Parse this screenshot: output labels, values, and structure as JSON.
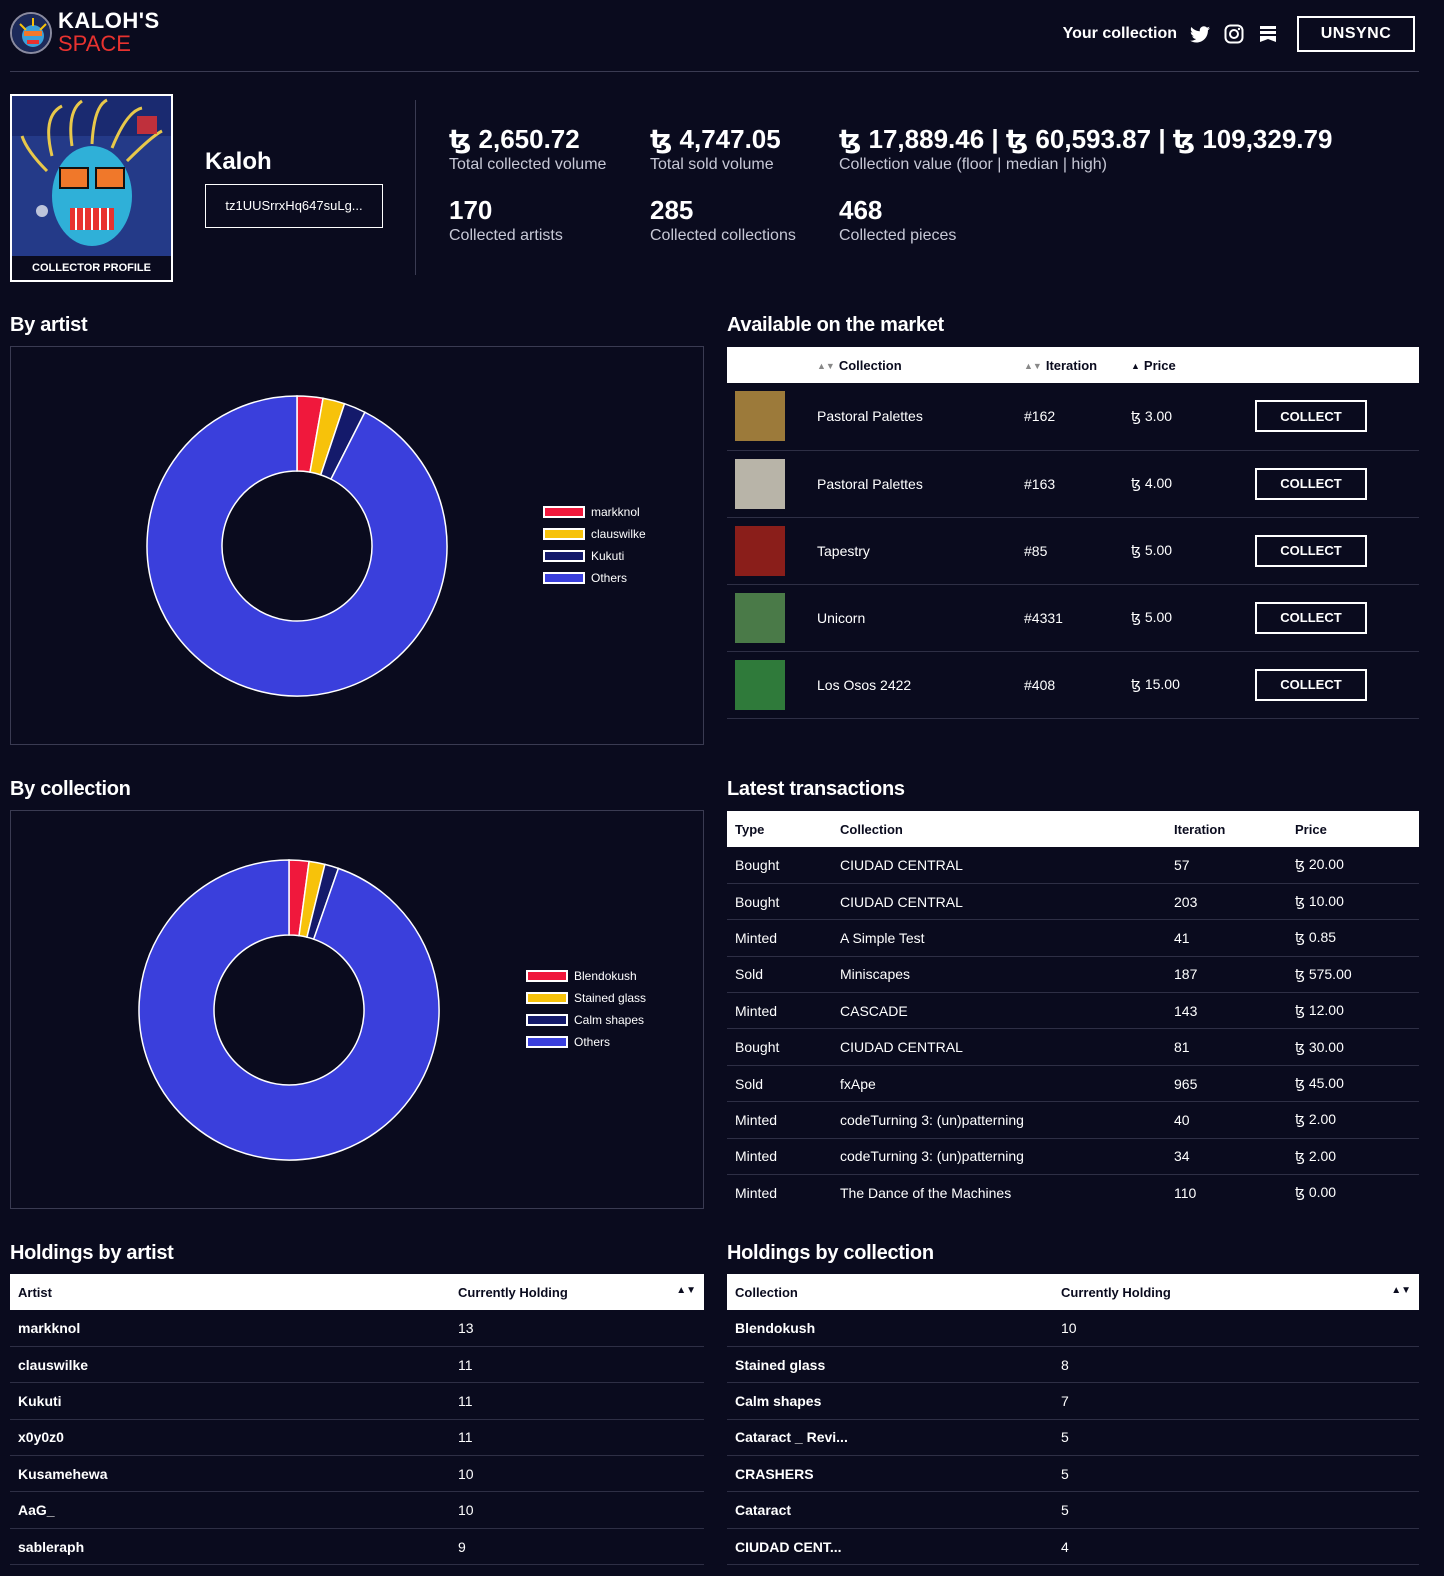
{
  "header": {
    "brand_line1": "KALOH'S",
    "brand_line2": "SPACE",
    "your_collection": "Your collection",
    "unsync_label": "UNSYNC",
    "icons": [
      "twitter-icon",
      "instagram-icon",
      "objkt-icon"
    ]
  },
  "profile": {
    "avatar_label": "COLLECTOR PROFILE",
    "name": "Kaloh",
    "address": "tz1UUSrrxHq647suLg..."
  },
  "stats": {
    "total_collected_volume": {
      "value": "ꜩ 2,650.72",
      "label": "Total collected volume"
    },
    "total_sold_volume": {
      "value": "ꜩ 4,747.05",
      "label": "Total sold volume"
    },
    "collection_value": {
      "value": "ꜩ 17,889.46 | ꜩ 60,593.87 | ꜩ 109,329.79",
      "label": "Collection value (floor | median | high)"
    },
    "collected_artists": {
      "value": "170",
      "label": "Collected artists"
    },
    "collected_collections": {
      "value": "285",
      "label": "Collected collections"
    },
    "collected_pieces": {
      "value": "468",
      "label": "Collected pieces"
    }
  },
  "sections": {
    "by_artist": "By artist",
    "by_collection": "By collection",
    "market": "Available on the market",
    "latest": "Latest transactions",
    "holdings_artist": "Holdings by artist",
    "holdings_collection": "Holdings by collection"
  },
  "colors": {
    "red": "#f0183c",
    "yellow": "#f7c20a",
    "navy": "#141a6b",
    "blue": "#3a3fdc",
    "bg": "#0a0b1e"
  },
  "chart_data": [
    {
      "type": "pie",
      "categories": [
        "markknol",
        "clauswilke",
        "Kukuti",
        "Others"
      ],
      "values": [
        13,
        11,
        11,
        433
      ],
      "legend_position": "right"
    },
    {
      "type": "pie",
      "categories": [
        "Blendokush",
        "Stained glass",
        "Calm shapes",
        "Others"
      ],
      "values": [
        10,
        8,
        7,
        443
      ],
      "legend_position": "right"
    }
  ],
  "market": {
    "headers": [
      "Collection",
      "Iteration",
      "Price"
    ],
    "button_label": "COLLECT",
    "rows": [
      {
        "collection": "Pastoral Palettes",
        "iteration": "#162",
        "price": "ꜩ 3.00",
        "thumb": "#9c7a3a"
      },
      {
        "collection": "Pastoral Palettes",
        "iteration": "#163",
        "price": "ꜩ 4.00",
        "thumb": "#b8b4a8"
      },
      {
        "collection": "Tapestry",
        "iteration": "#85",
        "price": "ꜩ 5.00",
        "thumb": "#8a1e1a"
      },
      {
        "collection": "Unicorn",
        "iteration": "#4331",
        "price": "ꜩ 5.00",
        "thumb": "#4a7a48"
      },
      {
        "collection": "Los Osos 2422",
        "iteration": "#408",
        "price": "ꜩ 15.00",
        "thumb": "#2f7a3a"
      }
    ]
  },
  "transactions": {
    "headers": [
      "Type",
      "Collection",
      "Iteration",
      "Price"
    ],
    "rows": [
      [
        "Bought",
        "CIUDAD CENTRAL",
        "57",
        "ꜩ 20.00"
      ],
      [
        "Bought",
        "CIUDAD CENTRAL",
        "203",
        "ꜩ 10.00"
      ],
      [
        "Minted",
        "A Simple Test",
        "41",
        "ꜩ 0.85"
      ],
      [
        "Sold",
        "Miniscapes",
        "187",
        "ꜩ 575.00"
      ],
      [
        "Minted",
        "CASCADE",
        "143",
        "ꜩ 12.00"
      ],
      [
        "Bought",
        "CIUDAD CENTRAL",
        "81",
        "ꜩ 30.00"
      ],
      [
        "Sold",
        "fxApe",
        "965",
        "ꜩ 45.00"
      ],
      [
        "Minted",
        "codeTurning 3: (un)patterning",
        "40",
        "ꜩ 2.00"
      ],
      [
        "Minted",
        "codeTurning 3: (un)patterning",
        "34",
        "ꜩ 2.00"
      ],
      [
        "Minted",
        "The Dance of the Machines",
        "110",
        "ꜩ 0.00"
      ]
    ]
  },
  "holdings_artist": {
    "headers": [
      "Artist",
      "Currently Holding"
    ],
    "rows": [
      [
        "markknol",
        "13"
      ],
      [
        "clauswilke",
        "11"
      ],
      [
        "Kukuti",
        "11"
      ],
      [
        "x0y0z0",
        "11"
      ],
      [
        "Kusamehewa",
        "10"
      ],
      [
        "AaG_",
        "10"
      ],
      [
        "sableraph",
        "9"
      ]
    ]
  },
  "holdings_collection": {
    "headers": [
      "Collection",
      "Currently Holding"
    ],
    "rows": [
      [
        "Blendokush",
        "10"
      ],
      [
        "Stained glass",
        "8"
      ],
      [
        "Calm shapes",
        "7"
      ],
      [
        "Cataract _ Revi...",
        "5"
      ],
      [
        "CRASHERS",
        "5"
      ],
      [
        "Cataract",
        "5"
      ],
      [
        "CIUDAD CENT...",
        "4"
      ]
    ]
  }
}
